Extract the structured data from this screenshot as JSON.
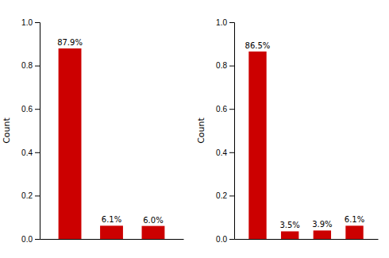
{
  "chart_data": [
    {
      "type": "bar",
      "categories": [
        null,
        null,
        null
      ],
      "values": [
        0.879,
        0.061,
        0.06
      ],
      "value_labels": [
        "87.9%",
        "6.1%",
        "6.0%"
      ],
      "data_labels": true,
      "color": "#cc0000",
      "ylabel": "Count",
      "ylim": [
        0,
        1.0
      ],
      "yticks": [
        {
          "value": 0,
          "label": "0.0"
        },
        0.2,
        0.4,
        0.6,
        0.8,
        {
          "value": 1.0,
          "label": "1.0"
        }
      ],
      "tick_labels": "y"
    },
    {
      "type": "bar",
      "categories": [
        null,
        null,
        null,
        null
      ],
      "values": [
        0.865,
        0.035,
        0.039,
        0.061
      ],
      "value_labels": [
        "86.5%",
        "3.5%",
        "3.9%",
        "6.1%"
      ],
      "data_labels": true,
      "color": "#cc0000",
      "ylabel": "Count",
      "ylim": [
        0,
        1.0
      ],
      "yticks": [
        {
          "value": 0,
          "label": "0.0"
        },
        0.2,
        0.4,
        0.6,
        0.8,
        {
          "value": 1.0,
          "label": "1.0"
        }
      ],
      "tick_labels": "y"
    }
  ]
}
